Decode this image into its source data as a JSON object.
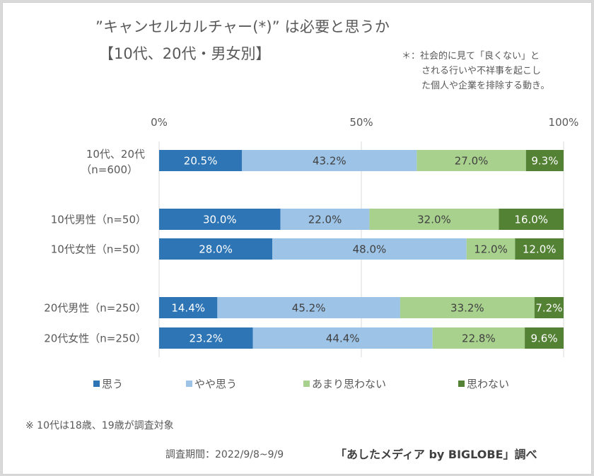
{
  "header": {
    "title_line1": "”キャンセルカルチャー(*)” は必要と思うか",
    "title_line2": "【10代、20代・男女別】",
    "definition_lines": [
      "＊：社会的に見て「良くない」と",
      "される行いや不祥事を起こし",
      "た個人や企業を排除する動き。"
    ]
  },
  "chart_data": {
    "type": "bar",
    "orientation": "horizontal",
    "stacked": "percent",
    "title": "”キャンセルカルチャー(*)” は必要と思うか 【10代、20代・男女別】",
    "xlabel": "",
    "ylabel": "",
    "xlim": [
      0,
      100
    ],
    "x_ticks": [
      "0%",
      "50%",
      "100%"
    ],
    "x_tick_values": [
      0,
      50,
      100
    ],
    "grid": true,
    "legend_position": "bottom",
    "categories": [
      [
        "10代、20代",
        "（n=600）"
      ],
      [
        "10代男性（n=50）"
      ],
      [
        "10代女性（n=50）"
      ],
      [
        "20代男性（n=250）"
      ],
      [
        "20代女性（n=250）"
      ]
    ],
    "group_gaps_after": [
      0,
      2
    ],
    "series": [
      {
        "name": "思う",
        "color": "#2e75b6",
        "label_color": "#ffffff",
        "values": [
          20.5,
          30.0,
          28.0,
          14.4,
          23.2
        ]
      },
      {
        "name": "やや思う",
        "color": "#9dc3e6",
        "label_color": "#404040",
        "values": [
          43.2,
          22.0,
          48.0,
          45.2,
          44.4
        ]
      },
      {
        "name": "あまり思わない",
        "color": "#a9d18e",
        "label_color": "#404040",
        "values": [
          27.0,
          32.0,
          12.0,
          33.2,
          22.8
        ]
      },
      {
        "name": "思わない",
        "color": "#548235",
        "label_color": "#ffffff",
        "values": [
          9.3,
          16.0,
          12.0,
          7.2,
          9.6
        ]
      }
    ]
  },
  "footer": {
    "note": "※ 10代は18歳、19歳が調査対象",
    "period": "調査期間：2022/9/8~9/9",
    "source": "「あしたメディア by BIGLOBE」調べ"
  }
}
